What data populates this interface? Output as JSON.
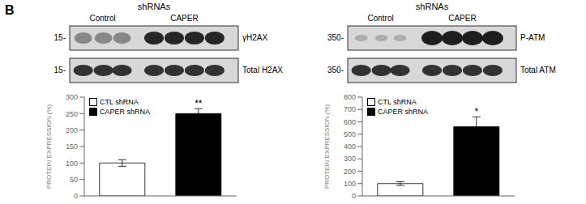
{
  "chart_data": [
    {
      "type": "bar",
      "title": "shRNAs",
      "categories": [
        "CTL shRNA",
        "CAPER shRNA"
      ],
      "values": [
        100,
        250
      ],
      "errors": [
        10,
        15
      ],
      "colors": [
        "white",
        "black"
      ],
      "ylabel": "PROTEIN EXPRESSION (%)",
      "ylim": [
        0,
        300
      ],
      "yticks": [
        0,
        50,
        100,
        150,
        200,
        250,
        300
      ],
      "grid": false,
      "legend": "upper left",
      "tick_labels": "y",
      "annotations": [
        {
          "text": "B"
        },
        {
          "text": "**",
          "category": "CAPER shRNA"
        }
      ],
      "blot": {
        "column_labels": [
          "Control",
          "CAPER"
        ],
        "row_labels": [
          "γH2AX",
          "Total H2AX"
        ],
        "marker_labels": [
          "15-",
          "15-"
        ]
      }
    },
    {
      "type": "bar",
      "title": "shRNAs",
      "categories": [
        "CTL shRNA",
        "CAPER shRNA"
      ],
      "values": [
        100,
        560
      ],
      "errors": [
        15,
        80
      ],
      "colors": [
        "white",
        "black"
      ],
      "ylabel": "PROTEIN EXPRESSION (%)",
      "ylim": [
        0,
        800
      ],
      "yticks": [
        0,
        100,
        200,
        300,
        400,
        500,
        600,
        700,
        800
      ],
      "grid": false,
      "legend": "upper left",
      "tick_labels": "y",
      "annotations": [
        {
          "text": "*",
          "category": "CAPER shRNA"
        }
      ],
      "blot": {
        "column_labels": [
          "Control",
          "CAPER"
        ],
        "row_labels": [
          "P-ATM",
          "Total ATM"
        ],
        "marker_labels": [
          "350-",
          "350-"
        ]
      }
    }
  ]
}
